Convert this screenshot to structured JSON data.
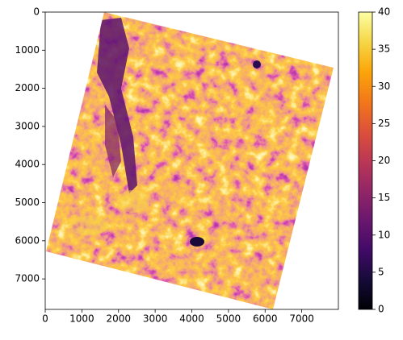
{
  "chart_data": {
    "type": "image",
    "xlim": [
      0,
      8000
    ],
    "ylim": [
      7800,
      0
    ],
    "xticks": [
      0,
      1000,
      2000,
      3000,
      4000,
      5000,
      6000,
      7000
    ],
    "yticks": [
      0,
      1000,
      2000,
      3000,
      4000,
      5000,
      6000,
      7000
    ],
    "colormap": "inferno",
    "colorbar": {
      "lim": [
        0,
        40
      ],
      "ticks": [
        0,
        5,
        10,
        15,
        20,
        25,
        30,
        35,
        40
      ]
    }
  }
}
